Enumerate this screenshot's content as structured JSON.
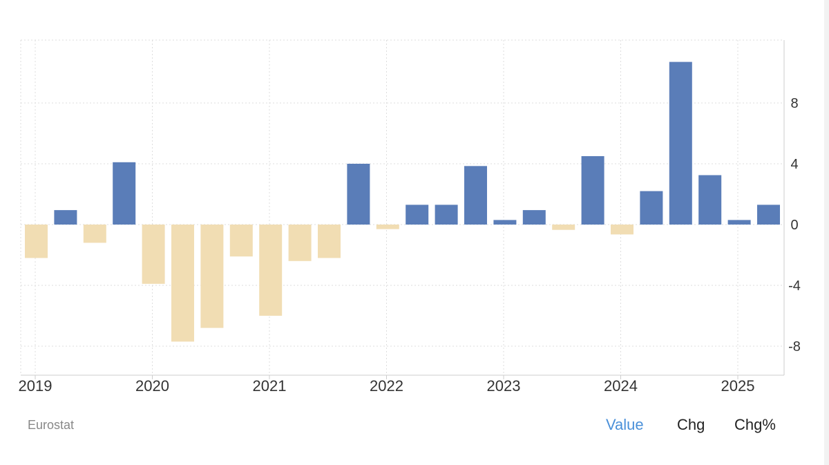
{
  "colors": {
    "positive": "#5a7db8",
    "negative": "#f1ddb3",
    "grid": "#dddddd",
    "axis": "#cccccc",
    "active_tab": "#4a90d9"
  },
  "chart_data": {
    "type": "bar",
    "title": "",
    "xlabel": "",
    "ylabel": "",
    "ylim": [
      -10.3,
      12
    ],
    "y_ticks": [
      8,
      4,
      0,
      -4,
      -8
    ],
    "y_tick_labels": [
      "8",
      "4",
      "0",
      "-4",
      "-8"
    ],
    "x_year_labels": [
      "2019",
      "2020",
      "2021",
      "2022",
      "2023",
      "2024",
      "2025"
    ],
    "categories": [
      "2019 Q1",
      "2019 Q2",
      "2019 Q3",
      "2019 Q4",
      "2020 Q1",
      "2020 Q2",
      "2020 Q3",
      "2020 Q4",
      "2021 Q1",
      "2021 Q2",
      "2021 Q3",
      "2021 Q4",
      "2022 Q1",
      "2022 Q2",
      "2022 Q3",
      "2022 Q4",
      "2023 Q1",
      "2023 Q2",
      "2023 Q3",
      "2023 Q4",
      "2024 Q1",
      "2024 Q2",
      "2024 Q3",
      "2024 Q4",
      "2025 Q1",
      "2025 Q2"
    ],
    "values": [
      -2.2,
      0.95,
      -1.2,
      4.1,
      -3.9,
      -7.7,
      -6.8,
      -2.1,
      -6.0,
      -2.4,
      -2.2,
      4.0,
      -0.3,
      1.3,
      1.3,
      3.85,
      0.3,
      0.95,
      -0.35,
      4.5,
      -0.65,
      2.2,
      10.7,
      3.25,
      0.3,
      1.3
    ],
    "source": "Eurostat"
  },
  "tabs": [
    {
      "label": "Value",
      "active": true
    },
    {
      "label": "Chg",
      "active": false
    },
    {
      "label": "Chg%",
      "active": false
    }
  ]
}
